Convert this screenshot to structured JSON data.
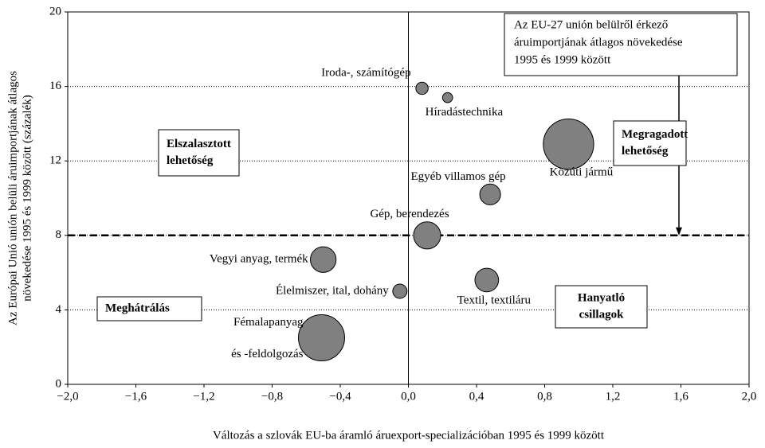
{
  "chart_data": {
    "type": "bubble",
    "xlabel": "Változás a szlovák EU-ba áramló áruexport-specializációban 1995 és 1999 között",
    "ylabel": [
      "Az Európai Unió unión belüli áruimportjának átlagos",
      "növekedése 1995 és 1999 között (százalék)"
    ],
    "xlim": [
      -2.0,
      2.0
    ],
    "ylim": [
      0,
      20
    ],
    "xticks": [
      {
        "value": -2.0,
        "label": "−2,0"
      },
      {
        "value": -1.6,
        "label": "−1,6"
      },
      {
        "value": -1.2,
        "label": "−1,2"
      },
      {
        "value": -0.8,
        "label": "−0,8"
      },
      {
        "value": -0.4,
        "label": "−0,4"
      },
      {
        "value": 0.0,
        "label": "0,0"
      },
      {
        "value": 0.4,
        "label": "0,4"
      },
      {
        "value": 0.8,
        "label": "0,8"
      },
      {
        "value": 1.2,
        "label": "1,2"
      },
      {
        "value": 1.6,
        "label": "1,6"
      },
      {
        "value": 2.0,
        "label": "2,0"
      }
    ],
    "yticks": [
      0,
      4,
      8,
      12,
      16,
      20
    ],
    "ref_y": 8,
    "ref_x": 0,
    "color": "#808080",
    "points": {
      "labels": [
        [
          "Iroda-, számítógép"
        ],
        [
          "Híradástechnika"
        ],
        [
          "Közúti jármű"
        ],
        [
          "Egyéb villamos gép"
        ],
        [
          "Gép, berendezés"
        ],
        [
          "Vegyi anyag, termék"
        ],
        [
          "Élelmiszer, ital, dohány"
        ],
        [
          "Textil, textiláru"
        ],
        [
          "Fémalapanyag",
          "és -feldolgozás"
        ]
      ],
      "x": [
        0.08,
        0.23,
        0.94,
        0.48,
        0.11,
        -0.5,
        -0.05,
        0.46,
        -0.51
      ],
      "y": [
        15.9,
        15.4,
        12.9,
        10.2,
        8.0,
        6.7,
        5.0,
        5.6,
        2.5
      ],
      "sizes": [
        0.6,
        0.4,
        10,
        1.7,
        2.9,
        2.6,
        0.8,
        2.2,
        8.4
      ]
    },
    "quadrant_labels": [
      [
        "Elszalasztott",
        "lehetőség"
      ],
      [
        "Meghátrálás"
      ],
      [
        "Megragadott",
        "lehetőség"
      ],
      [
        "Hanyatló",
        "csillagok"
      ]
    ],
    "annotation": [
      "Az EU-27 unión belülről érkező",
      "áruimportjának átlagos növekedése",
      "1995 és 1999 között"
    ]
  }
}
